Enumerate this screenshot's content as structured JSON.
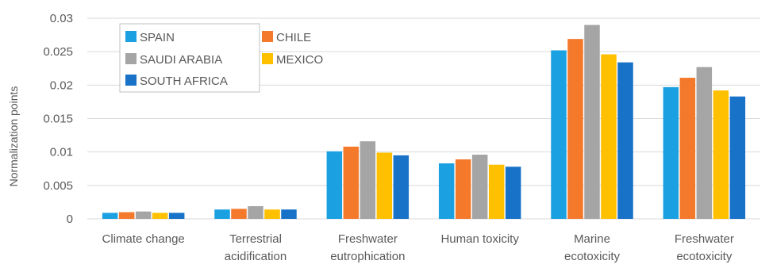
{
  "chart_data": {
    "type": "bar",
    "categories": [
      [
        "Climate change"
      ],
      [
        "Terrestrial",
        "acidification"
      ],
      [
        "Freshwater",
        "eutrophication"
      ],
      [
        "Human toxicity"
      ],
      [
        "Marine",
        "ecotoxicity"
      ],
      [
        "Freshwater",
        "ecotoxicity"
      ]
    ],
    "series": [
      {
        "name": "SPAIN",
        "color": "#1BA1E2",
        "values": [
          0.0009,
          0.0014,
          0.0101,
          0.0083,
          0.0252,
          0.0197
        ]
      },
      {
        "name": "CHILE",
        "color": "#F4792B",
        "values": [
          0.001,
          0.0015,
          0.0108,
          0.0089,
          0.0269,
          0.0211
        ]
      },
      {
        "name": "SAUDI ARABIA",
        "color": "#A5A5A5",
        "values": [
          0.0011,
          0.0019,
          0.0116,
          0.0096,
          0.029,
          0.0227
        ]
      },
      {
        "name": "MEXICO",
        "color": "#FFC000",
        "values": [
          0.0009,
          0.0014,
          0.0099,
          0.0081,
          0.0246,
          0.0192
        ]
      },
      {
        "name": "SOUTH AFRICA",
        "color": "#1872C8",
        "values": [
          0.0009,
          0.0014,
          0.0095,
          0.0078,
          0.0234,
          0.0183
        ]
      }
    ],
    "ylabel": "Normalization points",
    "ylim": [
      0,
      0.03
    ],
    "yticks": [
      "0",
      "0.005",
      "0.01",
      "0.015",
      "0.02",
      "0.025",
      "0.03"
    ],
    "grid": true,
    "legend_position": "top-left"
  }
}
